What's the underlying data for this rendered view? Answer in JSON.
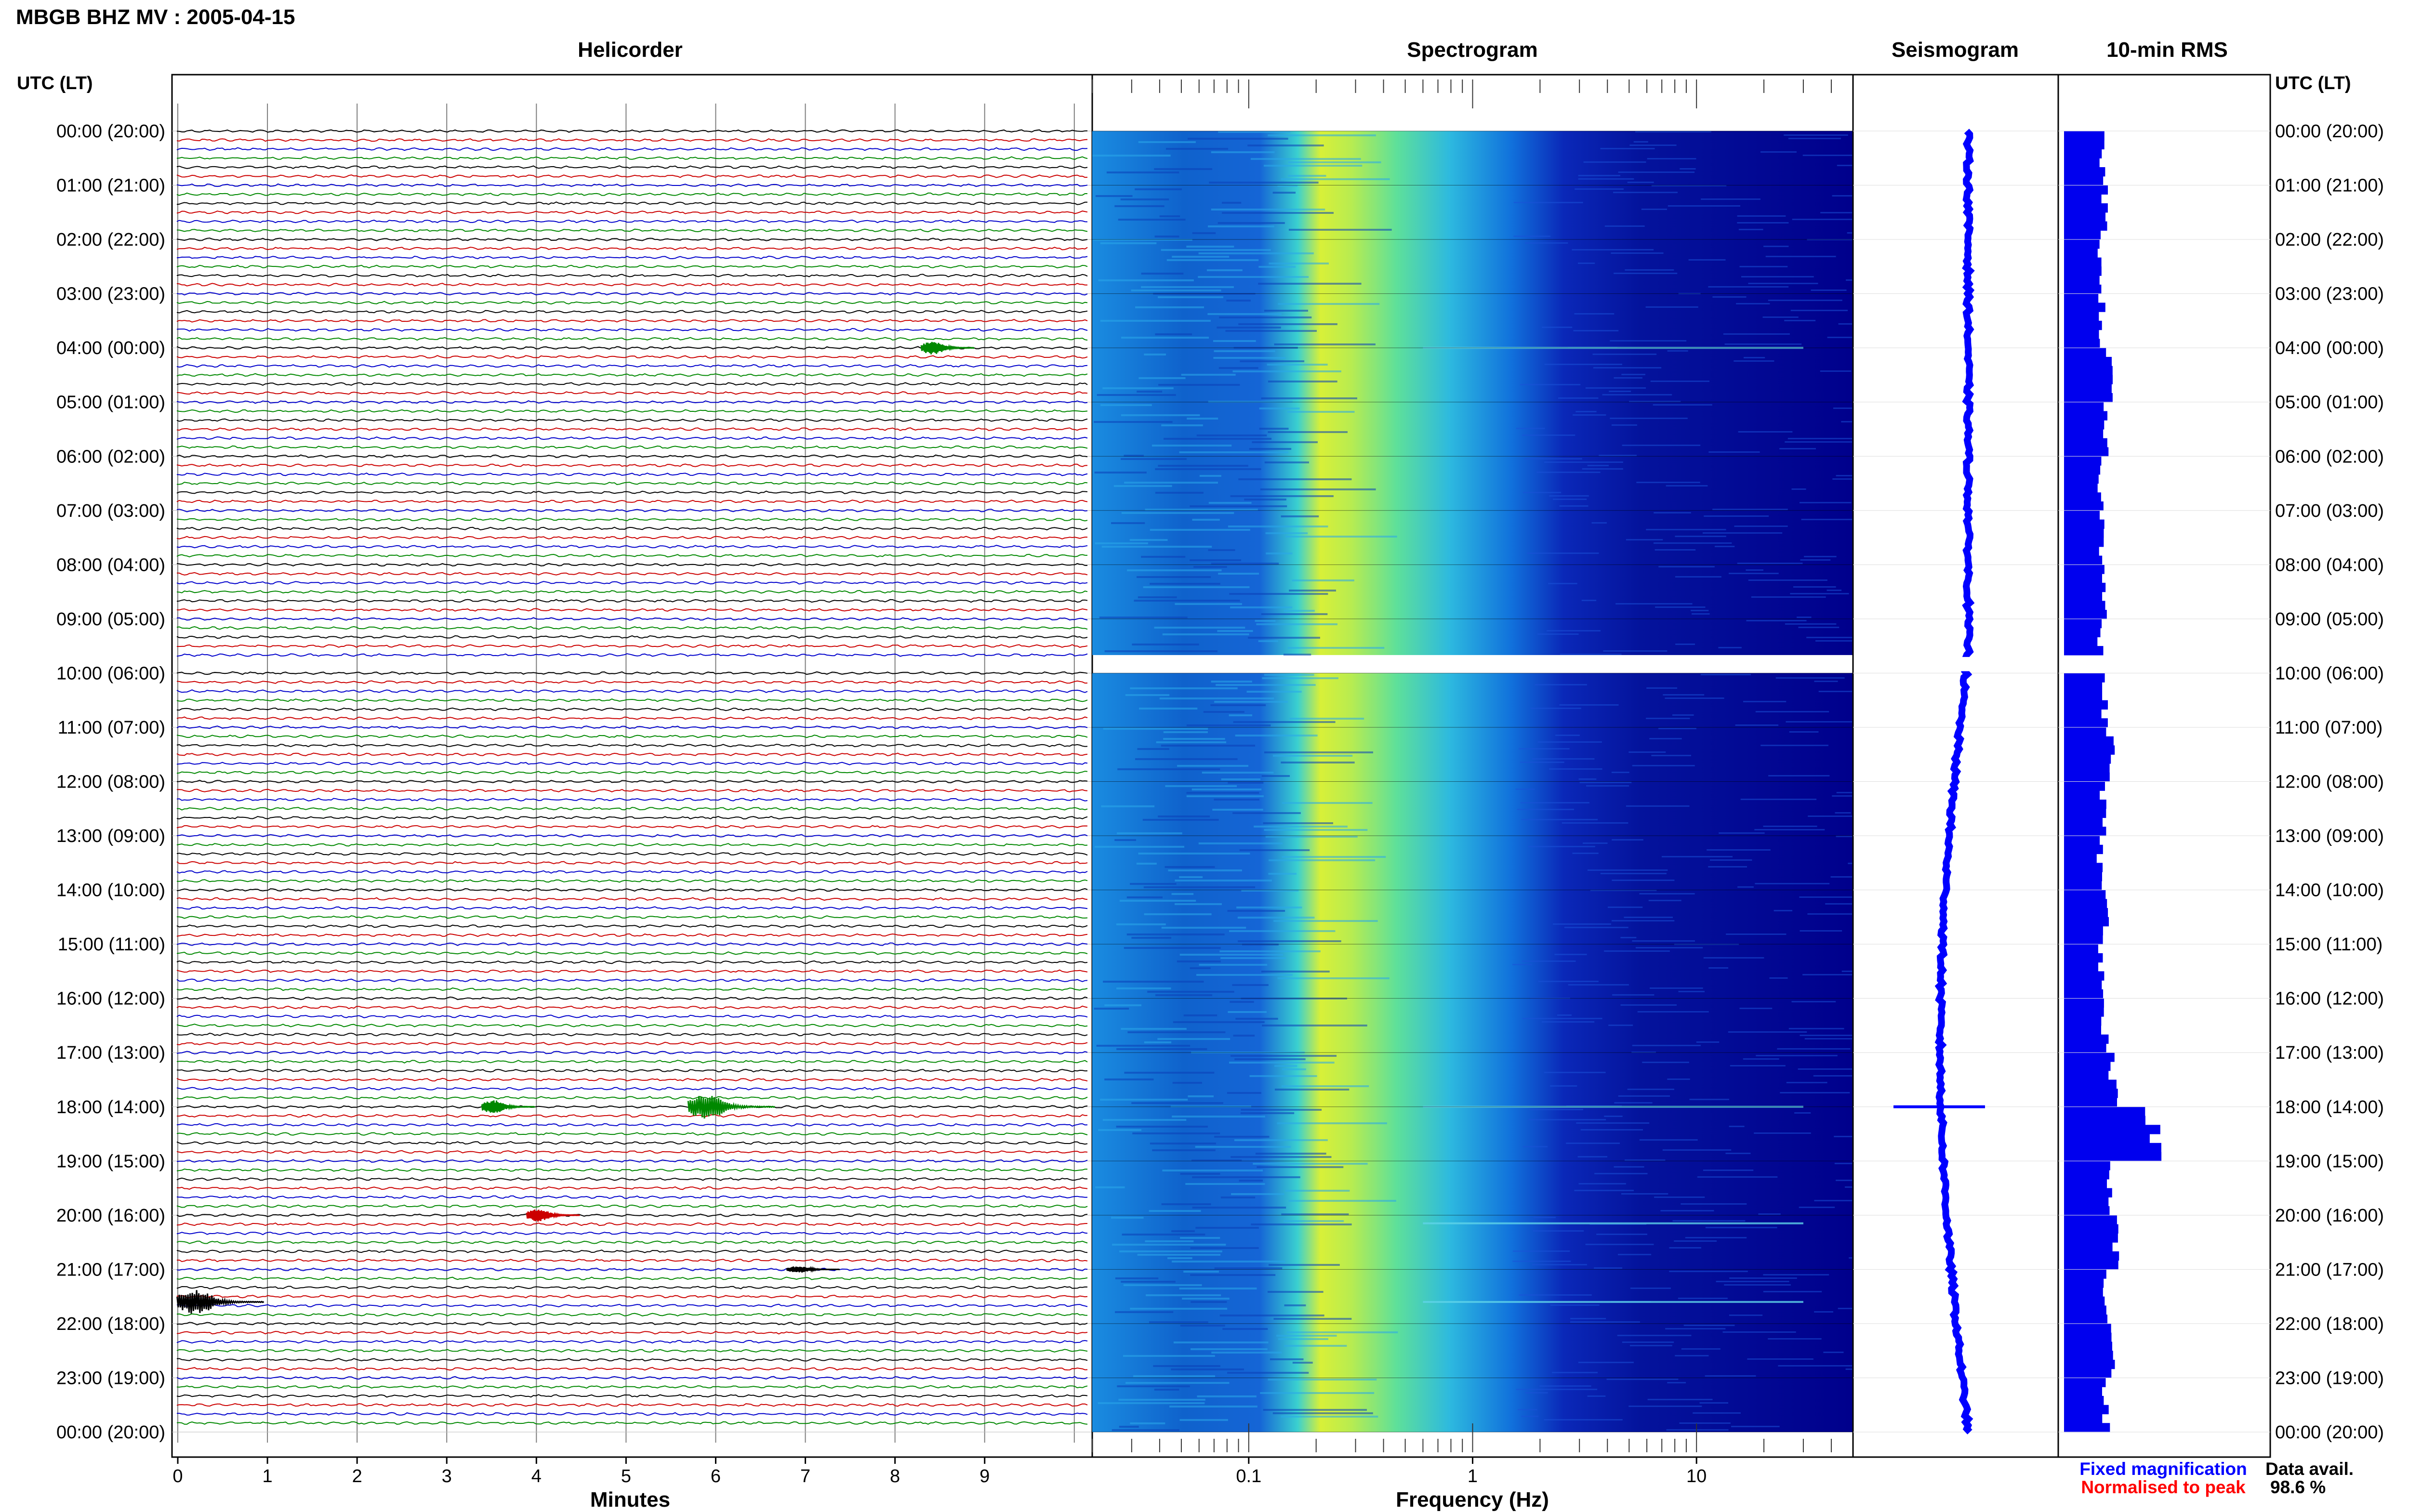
{
  "header": {
    "station_title": "MBGB BHZ MV : 2005-04-15",
    "utc_label_left": "UTC (LT)",
    "utc_label_right": "UTC (LT)"
  },
  "panels": {
    "helicorder": "Helicorder",
    "spectrogram": "Spectrogram",
    "seismogram": "Seismogram",
    "rms": "10-min RMS"
  },
  "axes": {
    "helicorder_xlabel": "Minutes",
    "helicorder_ticks": [
      "0",
      "1",
      "2",
      "3",
      "4",
      "5",
      "6",
      "7",
      "8",
      "9"
    ],
    "spectrogram_xlabel": "Frequency (Hz)",
    "spectrogram_ticks": [
      "0.1",
      "1",
      "10"
    ]
  },
  "time_labels": [
    "00:00 (20:00)",
    "01:00 (21:00)",
    "02:00 (22:00)",
    "03:00 (23:00)",
    "04:00 (00:00)",
    "05:00 (01:00)",
    "06:00 (02:00)",
    "07:00 (03:00)",
    "08:00 (04:00)",
    "09:00 (05:00)",
    "10:00 (06:00)",
    "11:00 (07:00)",
    "12:00 (08:00)",
    "13:00 (09:00)",
    "14:00 (10:00)",
    "15:00 (11:00)",
    "16:00 (12:00)",
    "17:00 (13:00)",
    "18:00 (14:00)",
    "19:00 (15:00)",
    "20:00 (16:00)",
    "21:00 (17:00)",
    "22:00 (18:00)",
    "23:00 (19:00)",
    "00:00 (20:00)"
  ],
  "legend": {
    "fixed": "Fixed magnification",
    "normalised": "Normalised to peak",
    "data_avail_label": "Data avail.",
    "data_avail_value": "98.6 %"
  },
  "colors": {
    "trace_cycle": [
      "#000000",
      "#cc0000",
      "#0000cc",
      "#008800"
    ],
    "fixed": "#0000ff",
    "normalised": "#ff0000",
    "rms_bar": "#0000ee",
    "spec_low": "#00008c",
    "spec_high": "#ffff33"
  },
  "chart_data": {
    "type": "heatmap",
    "title": "MBGB BHZ MV : 2005-04-15",
    "helicorder": {
      "x_label": "Minutes",
      "x_range": [
        0,
        10
      ],
      "lines_per_hour": 6,
      "hours": 24,
      "data_gap_utc": [
        "09:40",
        "10:00"
      ],
      "events": [
        {
          "utc_hour": 4,
          "minute": 8.4,
          "color": "green",
          "amplitude": "medium"
        },
        {
          "utc_hour": 18,
          "minute": 3.5,
          "color": "green",
          "amplitude": "medium"
        },
        {
          "utc_hour": 18,
          "minute": 5.8,
          "color": "green",
          "amplitude": "large"
        },
        {
          "utc_hour": 20,
          "minute": 4.0,
          "color": "red",
          "amplitude": "medium"
        },
        {
          "utc_hour": 21,
          "minute": 6.9,
          "color": "black",
          "amplitude": "small"
        },
        {
          "utc_hour": 21.6,
          "minute": 0.1,
          "color": "black",
          "amplitude": "large"
        }
      ]
    },
    "spectrogram": {
      "x_label": "Frequency (Hz)",
      "x_scale": "log",
      "x_range": [
        0.02,
        50
      ],
      "peak_band_hz": [
        0.2,
        0.6
      ]
    },
    "rms": {
      "relative_values": [
        0.43,
        0.45,
        0.4,
        0.42,
        0.5,
        0.45,
        0.41,
        0.43,
        0.47,
        0.4,
        0.45,
        0.52,
        0.44,
        0.4,
        0.48,
        0.42,
        0.46,
        0.55,
        1.0,
        0.5,
        0.58,
        0.45,
        0.55,
        0.47,
        0.43
      ]
    }
  }
}
